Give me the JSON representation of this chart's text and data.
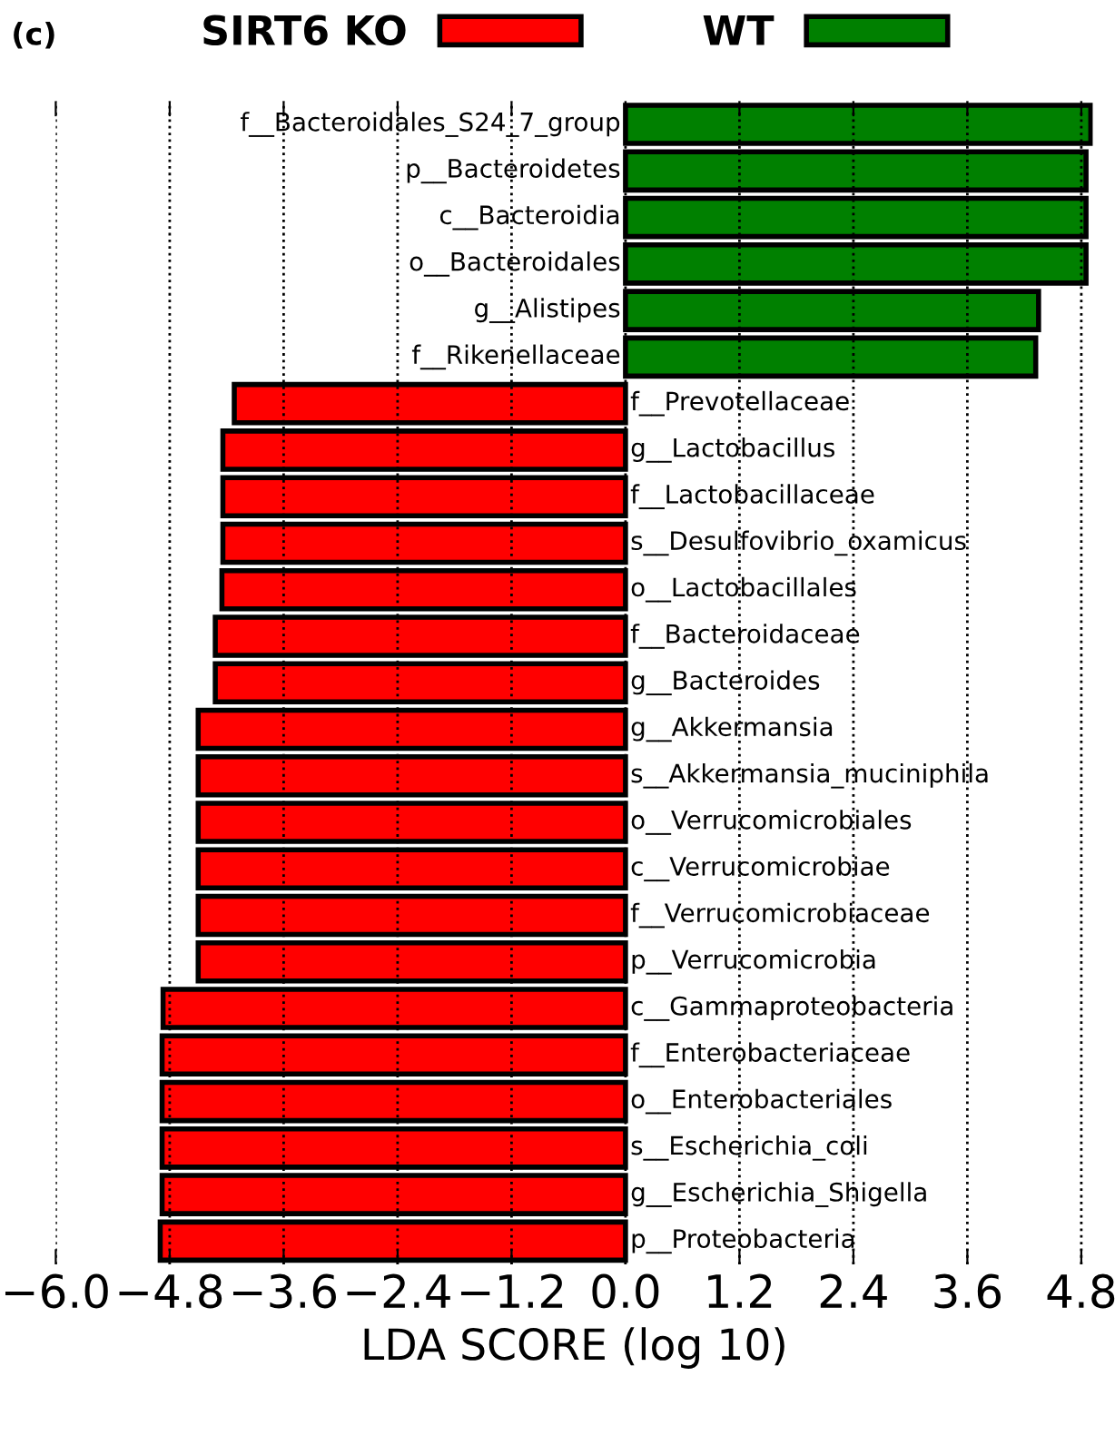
{
  "chart_data": {
    "type": "bar",
    "orientation": "horizontal",
    "xlabel": "LDA SCORE (log 10)",
    "annotations": [
      "(c)"
    ],
    "categories": [
      "f__Bacteroidales_S24_7_group",
      "p__Bacteroidetes",
      "c__Bacteroidia",
      "o__Bacteroidales",
      "g__Alistipes",
      "f__Rikenellaceae",
      "f__Prevotellaceae",
      "g__Lactobacillus",
      "f__Lactobacillaceae",
      "s__Desulfovibrio_oxamicus",
      "o__Lactobacillales",
      "f__Bacteroidaceae",
      "g__Bacteroides",
      "g__Akkermansia",
      "s__Akkermansia_muciniphila",
      "o__Verrucomicrobiales",
      "c__Verrucomicrobiae",
      "f__Verrucomicrobiaceae",
      "p__Verrucomicrobia",
      "c__Gammaproteobacteria",
      "f__Enterobacteriaceae",
      "o__Enterobacteriales",
      "s__Escherichia_coli",
      "g__Escherichia_Shigella",
      "p__Proteobacteria"
    ],
    "series": [
      {
        "name": "SIRT6 KO",
        "color": "#ff0000",
        "values": [
          null,
          null,
          null,
          null,
          null,
          null,
          -4.12,
          -4.24,
          -4.24,
          -4.24,
          -4.25,
          -4.32,
          -4.32,
          -4.5,
          -4.5,
          -4.5,
          -4.5,
          -4.5,
          -4.5,
          -4.87,
          -4.88,
          -4.88,
          -4.88,
          -4.88,
          -4.9
        ]
      },
      {
        "name": "WT",
        "color": "#008000",
        "values": [
          4.9,
          4.85,
          4.85,
          4.85,
          4.35,
          4.32,
          null,
          null,
          null,
          null,
          null,
          null,
          null,
          null,
          null,
          null,
          null,
          null,
          null,
          null,
          null,
          null,
          null,
          null,
          null
        ]
      }
    ],
    "xlim": [
      -6.0,
      4.92
    ],
    "xticks": [
      {
        "value": -6.0,
        "label": "−6.0"
      },
      {
        "value": -4.8,
        "label": "−4.8"
      },
      {
        "value": -3.6,
        "label": "−3.6"
      },
      {
        "value": -2.4,
        "label": "−2.4"
      },
      {
        "value": -1.2,
        "label": "−1.2"
      },
      {
        "value": 0.0,
        "label": "0.0"
      },
      {
        "value": 1.2,
        "label": "1.2"
      },
      {
        "value": 2.4,
        "label": "2.4"
      },
      {
        "value": 3.6,
        "label": "3.6"
      },
      {
        "value": 4.8,
        "label": "4.8"
      }
    ],
    "grid": "x",
    "legend": "top",
    "tick_labels": "x"
  }
}
